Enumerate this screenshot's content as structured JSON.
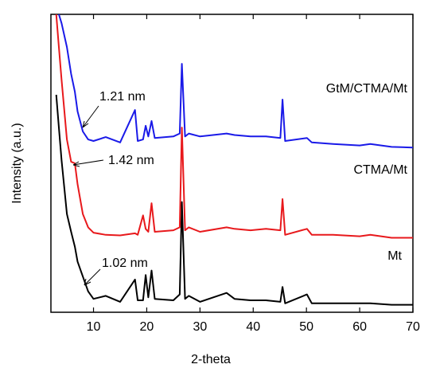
{
  "chart_data": {
    "type": "line",
    "xlabel": "2-theta",
    "ylabel": "Intensity (a.u.)",
    "x": [
      3,
      3.5,
      4,
      5,
      5.8,
      6.5,
      7,
      8,
      9,
      10,
      12.3,
      15,
      17.8,
      18.3,
      19.3,
      19.8,
      20.3,
      20.9,
      21.5,
      25,
      26.2,
      26.6,
      27.2,
      27.9,
      30,
      35,
      36.5,
      39.5,
      42.4,
      45.1,
      45.5,
      46,
      50.1,
      51,
      55,
      60,
      62,
      66,
      70
    ],
    "series": [
      {
        "name": "Mt",
        "color": "#000000",
        "values": [
          73,
          62,
          51,
          33,
          27,
          22,
          17,
          12,
          7,
          4.5,
          5.5,
          3.5,
          11,
          4,
          4,
          12.5,
          5,
          14,
          4.5,
          4,
          6,
          37,
          4.5,
          5.5,
          3.5,
          6.5,
          4.5,
          4,
          4,
          3.5,
          8.5,
          3,
          6,
          3,
          3,
          3,
          3,
          2.5,
          2.5
        ]
      },
      {
        "name": "CTMA/Mt",
        "color": "#e8191c",
        "values": [
          100,
          89,
          78,
          58,
          50.5,
          50,
          43,
          33,
          28.5,
          26.7,
          26,
          25.8,
          26.5,
          26,
          32.5,
          28,
          27,
          36.6,
          27,
          27.5,
          28.5,
          62,
          27.5,
          28.5,
          27,
          28.5,
          28,
          27.5,
          28,
          27.5,
          38,
          26,
          28,
          26,
          26,
          25.5,
          26,
          25,
          25
        ]
      },
      {
        "name": "GtM/CTMA/Mt",
        "color": "#1a1ae8",
        "values": [
          null,
          100,
          97,
          89,
          80,
          74,
          67.4,
          60.7,
          58,
          57.5,
          58.8,
          57,
          67.9,
          57.5,
          58,
          62.6,
          59,
          64.2,
          58.5,
          59,
          60,
          83.4,
          59,
          60,
          59,
          60,
          59.5,
          59,
          59,
          58.5,
          71.4,
          57.5,
          58.5,
          57,
          56.5,
          56,
          56.5,
          55.5,
          55.3
        ]
      }
    ],
    "annotations": [
      "1.21 nm",
      "1.42 nm",
      "1.02 nm"
    ],
    "xlim": [
      2,
      70
    ],
    "ylim": [
      0,
      100
    ],
    "xticks": [
      10,
      20,
      30,
      40,
      50,
      60,
      70
    ]
  }
}
